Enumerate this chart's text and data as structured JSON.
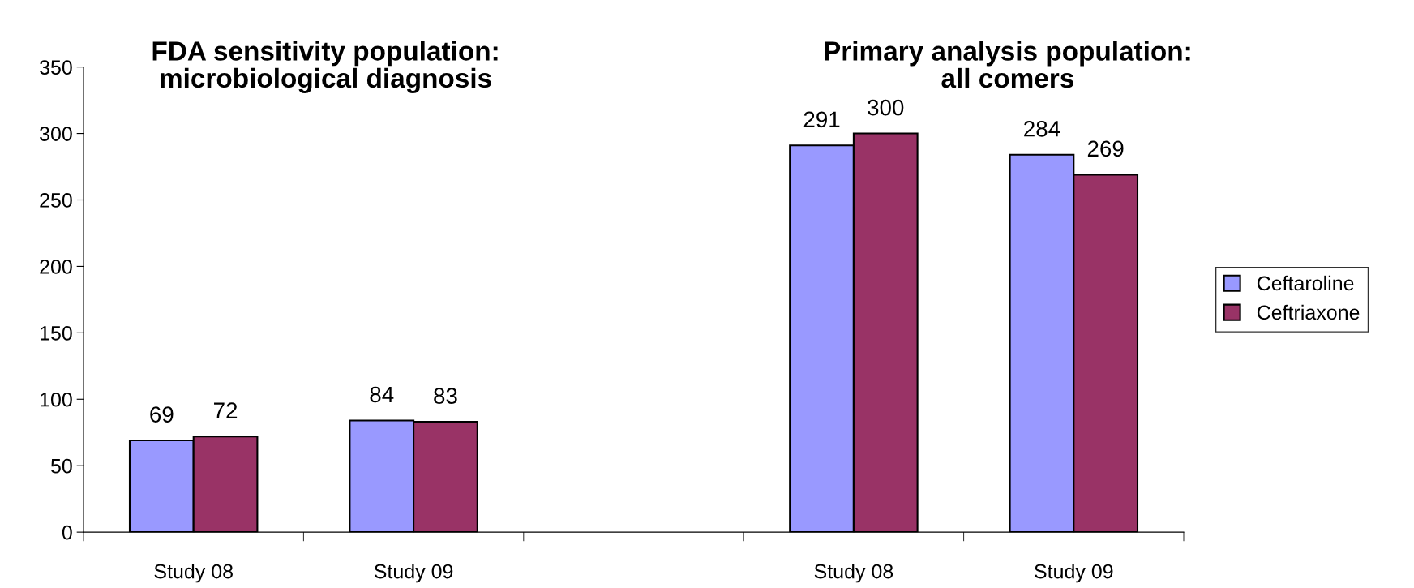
{
  "chart_data": {
    "type": "bar",
    "categories": [
      "Study 08",
      "Study 09",
      null,
      "Study 08",
      "Study 09"
    ],
    "series": [
      {
        "name": "Ceftaroline",
        "color": "#9999ff",
        "values": [
          69,
          84,
          null,
          291,
          284
        ]
      },
      {
        "name": "Ceftriaxone",
        "color": "#993366",
        "values": [
          72,
          83,
          null,
          300,
          269
        ]
      }
    ],
    "annotations": [
      "FDA sensitivity population:\nmicrobiological diagnosis",
      "Primary analysis population:\nall comers"
    ],
    "ylim": [
      0,
      350
    ],
    "yticks": [
      0,
      50,
      100,
      150,
      200,
      250,
      300,
      350
    ],
    "data_labels": true,
    "grid": false,
    "legend": "right"
  }
}
